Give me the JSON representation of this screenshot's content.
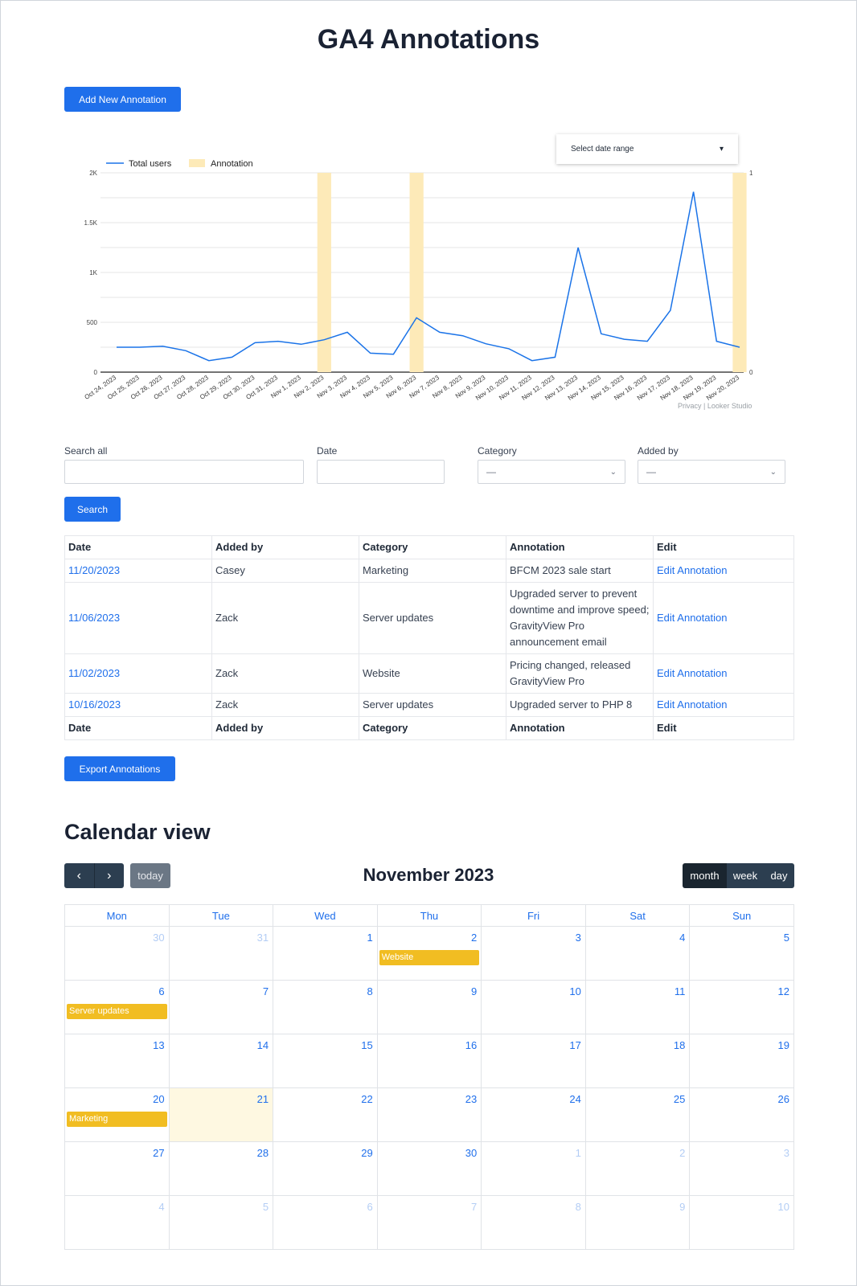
{
  "page": {
    "title": "GA4 Annotations"
  },
  "buttons": {
    "add": "Add New Annotation",
    "search": "Search",
    "export": "Export Annotations"
  },
  "date_range": {
    "label": "Select date range"
  },
  "chart_data": {
    "type": "line",
    "legend": [
      {
        "name": "Total users",
        "color": "#1a73e8"
      },
      {
        "name": "Annotation",
        "color": "#fdeab8"
      }
    ],
    "x": [
      "Oct 24, 2023",
      "Oct 25, 2023",
      "Oct 26, 2023",
      "Oct 27, 2023",
      "Oct 28, 2023",
      "Oct 29, 2023",
      "Oct 30, 2023",
      "Oct 31, 2023",
      "Nov 1, 2023",
      "Nov 2, 2023",
      "Nov 3, 2023",
      "Nov 4, 2023",
      "Nov 5, 2023",
      "Nov 6, 2023",
      "Nov 7, 2023",
      "Nov 8, 2023",
      "Nov 9, 2023",
      "Nov 10, 2023",
      "Nov 11, 2023",
      "Nov 12, 2023",
      "Nov 13, 2023",
      "Nov 14, 2023",
      "Nov 15, 2023",
      "Nov 16, 2023",
      "Nov 17, 2023",
      "Nov 18, 2023",
      "Nov 19, 2023",
      "Nov 20, 2023"
    ],
    "series": [
      {
        "name": "Total users",
        "values": [
          250,
          250,
          260,
          215,
          115,
          150,
          295,
          310,
          280,
          325,
          400,
          190,
          180,
          545,
          400,
          365,
          285,
          235,
          115,
          150,
          1250,
          385,
          330,
          310,
          620,
          1810,
          310,
          250
        ]
      }
    ],
    "annotation_dates": [
      "Nov 2, 2023",
      "Nov 6, 2023",
      "Nov 20, 2023"
    ],
    "y_ticks": [
      "0",
      "500",
      "1K",
      "1.5K",
      "2K"
    ],
    "y_right_ticks": [
      "0",
      "1"
    ],
    "ylim": [
      0,
      2000
    ],
    "grid": true,
    "legend_position": "top-left",
    "footer": "Privacy | Looker Studio"
  },
  "filters": {
    "search_all_label": "Search all",
    "date_label": "Date",
    "category_label": "Category",
    "category_value": "—",
    "added_by_label": "Added by",
    "added_by_value": "—"
  },
  "table": {
    "headers": [
      "Date",
      "Added by",
      "Category",
      "Annotation",
      "Edit"
    ],
    "rows": [
      {
        "date": "11/20/2023",
        "added_by": "Casey",
        "category": "Marketing",
        "annotation": "BFCM 2023 sale start",
        "edit": "Edit Annotation"
      },
      {
        "date": "11/06/2023",
        "added_by": "Zack",
        "category": "Server updates",
        "annotation": "Upgraded server to prevent downtime and improve speed; GravityView Pro announcement email",
        "edit": "Edit Annotation"
      },
      {
        "date": "11/02/2023",
        "added_by": "Zack",
        "category": "Website",
        "annotation": "Pricing changed, released GravityView Pro",
        "edit": "Edit Annotation"
      },
      {
        "date": "10/16/2023",
        "added_by": "Zack",
        "category": "Server updates",
        "annotation": "Upgraded server to PHP 8",
        "edit": "Edit Annotation"
      }
    ]
  },
  "calendar": {
    "heading": "Calendar view",
    "month_label": "November 2023",
    "today_label": "today",
    "prev_icon": "chevron-left-icon",
    "next_icon": "chevron-right-icon",
    "views": [
      "month",
      "week",
      "day"
    ],
    "active_view": "month",
    "weekdays": [
      "Mon",
      "Tue",
      "Wed",
      "Thu",
      "Fri",
      "Sat",
      "Sun"
    ],
    "weeks": [
      [
        {
          "d": "30",
          "other": true
        },
        {
          "d": "31",
          "other": true
        },
        {
          "d": "1"
        },
        {
          "d": "2",
          "event": "Website"
        },
        {
          "d": "3"
        },
        {
          "d": "4"
        },
        {
          "d": "5"
        }
      ],
      [
        {
          "d": "6",
          "event": "Server updates"
        },
        {
          "d": "7"
        },
        {
          "d": "8"
        },
        {
          "d": "9"
        },
        {
          "d": "10"
        },
        {
          "d": "11"
        },
        {
          "d": "12"
        }
      ],
      [
        {
          "d": "13"
        },
        {
          "d": "14"
        },
        {
          "d": "15"
        },
        {
          "d": "16"
        },
        {
          "d": "17"
        },
        {
          "d": "18"
        },
        {
          "d": "19"
        }
      ],
      [
        {
          "d": "20",
          "event": "Marketing"
        },
        {
          "d": "21",
          "today": true
        },
        {
          "d": "22"
        },
        {
          "d": "23"
        },
        {
          "d": "24"
        },
        {
          "d": "25"
        },
        {
          "d": "26"
        }
      ],
      [
        {
          "d": "27"
        },
        {
          "d": "28"
        },
        {
          "d": "29"
        },
        {
          "d": "30"
        },
        {
          "d": "1",
          "other": true
        },
        {
          "d": "2",
          "other": true
        },
        {
          "d": "3",
          "other": true
        }
      ],
      [
        {
          "d": "4",
          "other": true
        },
        {
          "d": "5",
          "other": true
        },
        {
          "d": "6",
          "other": true
        },
        {
          "d": "7",
          "other": true
        },
        {
          "d": "8",
          "other": true
        },
        {
          "d": "9",
          "other": true
        },
        {
          "d": "10",
          "other": true
        }
      ]
    ],
    "event_color": "#f1bd22"
  }
}
